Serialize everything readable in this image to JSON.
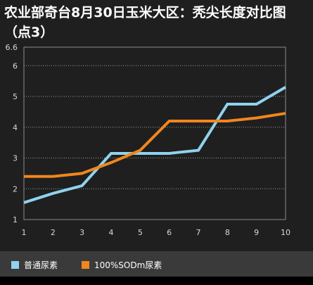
{
  "chart_data": {
    "type": "line",
    "title": "农业部奇台8月30日玉米大区：秃尖长度对比图（点3）",
    "xlabel": "",
    "ylabel": "",
    "categories": [
      "1",
      "2",
      "3",
      "4",
      "5",
      "6",
      "7",
      "8",
      "9",
      "10"
    ],
    "x_ticks": [
      "1",
      "2",
      "3",
      "4",
      "5",
      "6",
      "7",
      "8",
      "9",
      "10"
    ],
    "y_ticks": [
      "1",
      "2",
      "3",
      "4",
      "5",
      "6",
      "6.6"
    ],
    "xlim": [
      1,
      10
    ],
    "ylim": [
      1,
      6.6
    ],
    "grid": "horizontal dotted",
    "legend_position": "bottom",
    "background": "#1f1f1f",
    "series": [
      {
        "name": "普通尿素",
        "color": "#8fd3ee",
        "values": [
          1.55,
          1.85,
          2.1,
          3.15,
          3.15,
          3.15,
          3.25,
          4.75,
          4.75,
          5.3
        ]
      },
      {
        "name": "100%SODm尿素",
        "color": "#f0861e",
        "values": [
          2.4,
          2.4,
          2.5,
          2.85,
          3.25,
          4.2,
          4.2,
          4.2,
          4.3,
          4.45
        ]
      }
    ]
  }
}
